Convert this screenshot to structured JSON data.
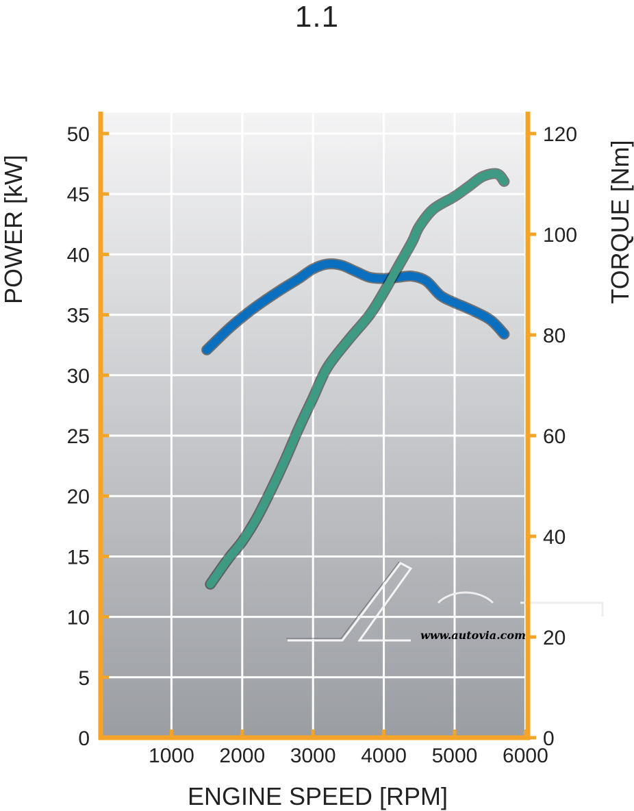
{
  "chart_data": {
    "type": "line",
    "title": "1.1",
    "xlabel": "ENGINE SPEED [RPM]",
    "ylabel_left": "POWER [kW]",
    "ylabel_right": "TORQUE [Nm]",
    "xlim": [
      0,
      6000
    ],
    "ylim_left": [
      0,
      50
    ],
    "ylim_right": [
      0,
      120
    ],
    "x_ticks": [
      "1000",
      "2000",
      "3000",
      "4000",
      "5000",
      "6000"
    ],
    "y_left_ticks": [
      "0",
      "5",
      "10",
      "15",
      "20",
      "25",
      "30",
      "35",
      "40",
      "45",
      "50"
    ],
    "y_right_ticks": [
      "0",
      "20",
      "40",
      "60",
      "80",
      "100",
      "120"
    ],
    "grid": true,
    "colors": {
      "power": "#0a6fbe",
      "torque": "#3e9a82",
      "axis": "#f5a42a",
      "grid": "#ffffff",
      "bg_top": "#f4f4f5",
      "bg_bottom": "#9a9da2"
    },
    "series": [
      {
        "axis": "left",
        "x": [
          1500,
          1800,
          2000,
          2200,
          2500,
          2800,
          3000,
          3200,
          3400,
          3600,
          3800,
          4000,
          4200,
          4400,
          4600,
          4800,
          5000,
          5200,
          5500,
          5700
        ],
        "values": [
          32.1,
          33.8,
          34.8,
          35.7,
          36.9,
          38.0,
          38.8,
          39.2,
          39.1,
          38.6,
          38.1,
          38.0,
          38.1,
          38.2,
          37.8,
          36.6,
          36.0,
          35.5,
          34.6,
          33.4
        ]
      },
      {
        "axis": "right",
        "x": [
          1550,
          1800,
          2000,
          2200,
          2400,
          2600,
          2800,
          3000,
          3200,
          3500,
          3800,
          4000,
          4200,
          4400,
          4500,
          4700,
          5000,
          5200,
          5400,
          5600,
          5700
        ],
        "values": [
          30.5,
          35.5,
          39.0,
          43.5,
          49.0,
          55.0,
          61.5,
          67.5,
          73.5,
          79.0,
          84.0,
          88.5,
          93.5,
          98.5,
          101.5,
          105.0,
          107.5,
          109.5,
          111.5,
          112.0,
          110.5
        ]
      }
    ]
  },
  "watermark": {
    "url": "www.autovia.com"
  }
}
